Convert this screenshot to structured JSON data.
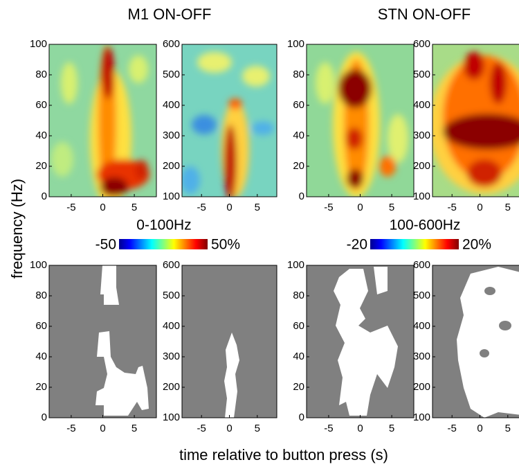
{
  "figure": {
    "columns": [
      {
        "title": "M1 ON-OFF",
        "colorbar": {
          "label": "0-100Hz",
          "min": "-50",
          "max": "50%"
        }
      },
      {
        "title": "STN ON-OFF",
        "colorbar": {
          "label": "100-600Hz",
          "min": "-20",
          "max": "20%"
        }
      }
    ],
    "y_label": "frequency (Hz)",
    "x_label": "time relative to button press (s)",
    "axes": {
      "low": {
        "ylim": [
          0,
          100
        ],
        "yticks": [
          0,
          20,
          40,
          60,
          80,
          100
        ]
      },
      "high": {
        "ylim": [
          100,
          600
        ],
        "yticks": [
          100,
          200,
          300,
          400,
          500,
          600
        ]
      },
      "xlim": [
        -8.5,
        8.5
      ],
      "xticks": [
        -5,
        0,
        5
      ]
    }
  }
}
